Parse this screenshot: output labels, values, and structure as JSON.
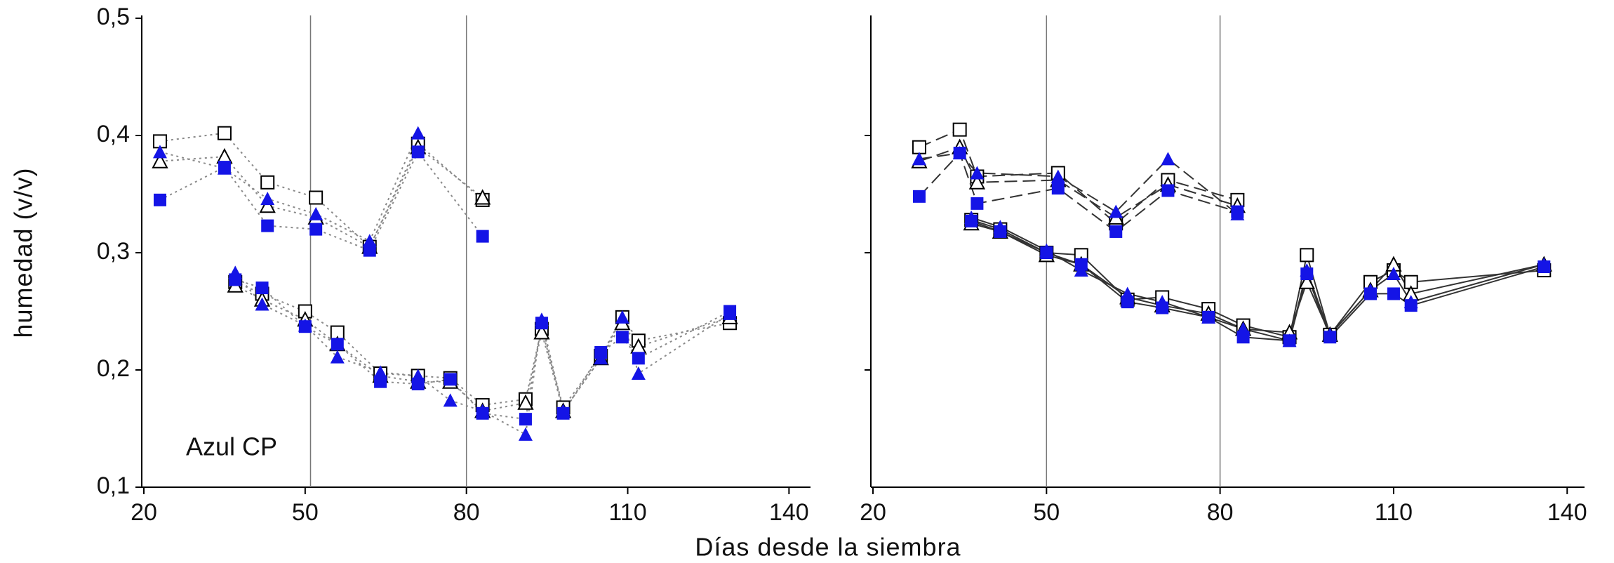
{
  "xlabel": "Días desde la siembra",
  "ylabel": "humedad (v/v)",
  "chart_data": [
    {
      "type": "line",
      "annotation": "Azul CP",
      "xlim": [
        20,
        144
      ],
      "ylim": [
        0.1,
        0.5
      ],
      "xticks": [
        20,
        50,
        80,
        110,
        140
      ],
      "yticks": [
        {
          "value": 0.1,
          "label": "0,1"
        },
        {
          "value": 0.2,
          "label": "0,2"
        },
        {
          "value": 0.3,
          "label": "0,3"
        },
        {
          "value": 0.4,
          "label": "0,4"
        },
        {
          "value": 0.5,
          "label": "0,5"
        }
      ],
      "ytick_labels": true,
      "vlines": [
        51,
        80
      ],
      "line_color": "#8a8a8a",
      "series": [
        {
          "marker": "square-open",
          "color": "#000000",
          "line_style": "dotted",
          "x": [
            23,
            35,
            43,
            52,
            62,
            71,
            83
          ],
          "values": [
            0.395,
            0.402,
            0.36,
            0.347,
            0.305,
            0.393,
            0.345
          ]
        },
        {
          "marker": "triangle-open",
          "color": "#000000",
          "line_style": "dotted",
          "x": [
            23,
            35,
            43,
            52,
            62,
            71,
            83
          ],
          "values": [
            0.378,
            0.382,
            0.34,
            0.33,
            0.305,
            0.39,
            0.347
          ]
        },
        {
          "marker": "square",
          "color": "#1414e6",
          "line_style": "dotted",
          "x": [
            23,
            35,
            43,
            52,
            62,
            71,
            83
          ],
          "values": [
            0.345,
            0.373,
            0.323,
            0.32,
            0.302,
            0.386,
            0.314
          ]
        },
        {
          "marker": "triangle",
          "color": "#1414e6",
          "line_style": "dotted",
          "x": [
            23,
            35,
            43,
            52,
            62,
            71,
            83
          ],
          "values": [
            0.386,
            0.372,
            0.346,
            0.333,
            0.31,
            0.402,
            null
          ]
        },
        {
          "marker": "square-open",
          "color": "#000000",
          "line_style": "dotted",
          "x": [
            37,
            42,
            50,
            56,
            64,
            71,
            77,
            83,
            91,
            94,
            98,
            105,
            109,
            112,
            129
          ],
          "values": [
            0.275,
            0.265,
            0.25,
            0.232,
            0.197,
            0.195,
            0.193,
            0.17,
            0.175,
            0.235,
            0.168,
            0.212,
            0.245,
            0.225,
            0.24
          ]
        },
        {
          "marker": "triangle-open",
          "color": "#000000",
          "line_style": "dotted",
          "x": [
            37,
            42,
            50,
            56,
            64,
            71,
            77,
            83,
            91,
            94,
            98,
            105,
            109,
            112,
            129
          ],
          "values": [
            0.272,
            0.26,
            0.243,
            0.222,
            0.195,
            0.19,
            0.19,
            0.165,
            0.172,
            0.232,
            0.165,
            0.21,
            0.24,
            0.22,
            0.245
          ]
        },
        {
          "marker": "square",
          "color": "#1414e6",
          "line_style": "dotted",
          "x": [
            37,
            42,
            50,
            56,
            64,
            71,
            77,
            83,
            91,
            94,
            98,
            105,
            109,
            112,
            129
          ],
          "values": [
            0.277,
            0.27,
            0.237,
            0.222,
            0.19,
            0.188,
            0.192,
            0.163,
            0.158,
            0.24,
            0.163,
            0.215,
            0.228,
            0.21,
            0.25
          ]
        },
        {
          "marker": "triangle",
          "color": "#1414e6",
          "line_style": "dotted",
          "x": [
            37,
            42,
            50,
            56,
            64,
            71,
            77,
            83,
            91,
            94,
            98,
            105,
            109,
            112,
            129
          ],
          "values": [
            0.283,
            0.256,
            0.238,
            0.211,
            0.198,
            0.195,
            0.174,
            0.165,
            0.145,
            0.243,
            0.165,
            0.21,
            0.245,
            0.197,
            0.248
          ]
        }
      ]
    },
    {
      "type": "line",
      "xlim": [
        20,
        143
      ],
      "ylim": [
        0.1,
        0.5
      ],
      "xticks": [
        20,
        50,
        80,
        110,
        140
      ],
      "yticks": [
        0.2,
        0.3,
        0.4
      ],
      "ytick_labels": false,
      "vlines": [
        50,
        80
      ],
      "line_color": "#333333",
      "series": [
        {
          "marker": "square-open",
          "color": "#000000",
          "line_style": "dashed",
          "x": [
            28,
            35,
            38,
            52,
            62,
            71,
            83
          ],
          "values": [
            0.39,
            0.405,
            0.365,
            0.368,
            0.325,
            0.362,
            0.345
          ]
        },
        {
          "marker": "triangle-open",
          "color": "#000000",
          "line_style": "dashed",
          "x": [
            28,
            35,
            38,
            52,
            62,
            71,
            83
          ],
          "values": [
            0.378,
            0.39,
            0.36,
            0.362,
            0.33,
            0.358,
            0.34
          ]
        },
        {
          "marker": "square",
          "color": "#1414e6",
          "line_style": "dashed",
          "x": [
            28,
            35,
            38,
            52,
            62,
            71,
            83
          ],
          "values": [
            0.348,
            0.385,
            0.342,
            0.355,
            0.318,
            0.353,
            0.335
          ]
        },
        {
          "marker": "triangle",
          "color": "#1414e6",
          "line_style": "dashed",
          "x": [
            28,
            35,
            38,
            52,
            62,
            71,
            83
          ],
          "values": [
            0.38,
            0.385,
            0.368,
            0.365,
            0.335,
            0.38,
            0.333
          ]
        },
        {
          "marker": "square-open",
          "color": "#000000",
          "line_style": "solid",
          "x": [
            37,
            42,
            50,
            56,
            64,
            70,
            78,
            84,
            92,
            95,
            99,
            106,
            110,
            113,
            136
          ],
          "values": [
            0.328,
            0.32,
            0.3,
            0.298,
            0.26,
            0.262,
            0.252,
            0.238,
            0.228,
            0.298,
            0.23,
            0.275,
            0.285,
            0.275,
            0.285
          ]
        },
        {
          "marker": "triangle-open",
          "color": "#000000",
          "line_style": "solid",
          "x": [
            37,
            42,
            50,
            56,
            64,
            70,
            78,
            84,
            92,
            95,
            99,
            106,
            110,
            113,
            136
          ],
          "values": [
            0.325,
            0.318,
            0.298,
            0.29,
            0.262,
            0.255,
            0.248,
            0.235,
            0.232,
            0.275,
            0.23,
            0.268,
            0.29,
            0.265,
            0.29
          ]
        },
        {
          "marker": "square",
          "color": "#1414e6",
          "line_style": "solid",
          "x": [
            37,
            42,
            50,
            56,
            64,
            70,
            78,
            84,
            92,
            95,
            99,
            106,
            110,
            113,
            136
          ],
          "values": [
            0.327,
            0.318,
            0.3,
            0.29,
            0.258,
            0.253,
            0.245,
            0.228,
            0.225,
            0.282,
            0.228,
            0.265,
            0.265,
            0.255,
            0.288
          ]
        },
        {
          "marker": "triangle",
          "color": "#1414e6",
          "line_style": "solid",
          "x": [
            37,
            42,
            50,
            56,
            64,
            70,
            78,
            84,
            92,
            95,
            99,
            106,
            110,
            113,
            136
          ],
          "values": [
            0.33,
            0.322,
            0.302,
            0.285,
            0.265,
            0.258,
            0.245,
            0.235,
            0.225,
            0.285,
            0.23,
            0.268,
            0.282,
            0.258,
            0.29
          ]
        }
      ]
    }
  ]
}
